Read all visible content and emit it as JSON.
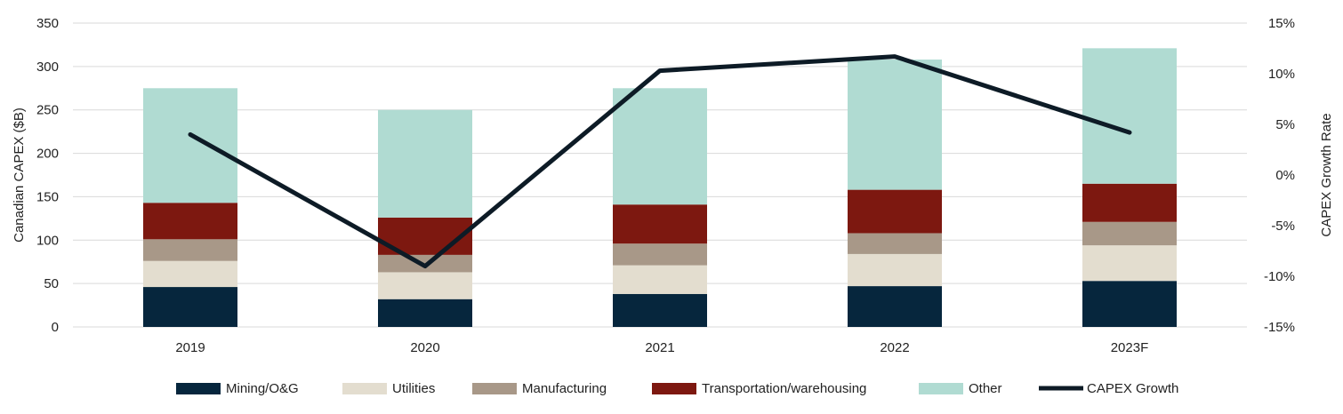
{
  "chart_data": {
    "type": "bar",
    "stacked": true,
    "categories": [
      "2019",
      "2020",
      "2021",
      "2022",
      "2023F"
    ],
    "series": [
      {
        "name": "Mining/O&G",
        "values": [
          46,
          32,
          38,
          47,
          53
        ],
        "color": "#06263d"
      },
      {
        "name": "Utilities",
        "values": [
          30,
          31,
          33,
          37,
          41
        ],
        "color": "#e3ddcf"
      },
      {
        "name": "Manufacturing",
        "values": [
          25,
          20,
          25,
          24,
          27
        ],
        "color": "#a89888"
      },
      {
        "name": "Transportation/warehousing",
        "values": [
          42,
          43,
          45,
          50,
          44
        ],
        "color": "#7d1810"
      },
      {
        "name": "Other",
        "values": [
          132,
          124,
          134,
          150,
          156
        ],
        "color": "#b0dbd2"
      }
    ],
    "line_series": {
      "name": "CAPEX Growth",
      "axis": "right",
      "values": [
        4.0,
        -9.0,
        10.3,
        11.7,
        4.2
      ],
      "color": "#0d1b26"
    },
    "ylabel": "Canadian CAPEX ($B)",
    "ylim": [
      0,
      350
    ],
    "yticks": [
      "0",
      "50",
      "100",
      "150",
      "200",
      "250",
      "300",
      "350"
    ],
    "ylabel_right": "CAPEX Growth Rate",
    "ylim_right": [
      -15,
      15
    ],
    "yticks_right": [
      "-15%",
      "-10%",
      "-5%",
      "0%",
      "5%",
      "10%",
      "15%"
    ],
    "xlabel": "",
    "grid": true,
    "legend_position": "bottom"
  }
}
